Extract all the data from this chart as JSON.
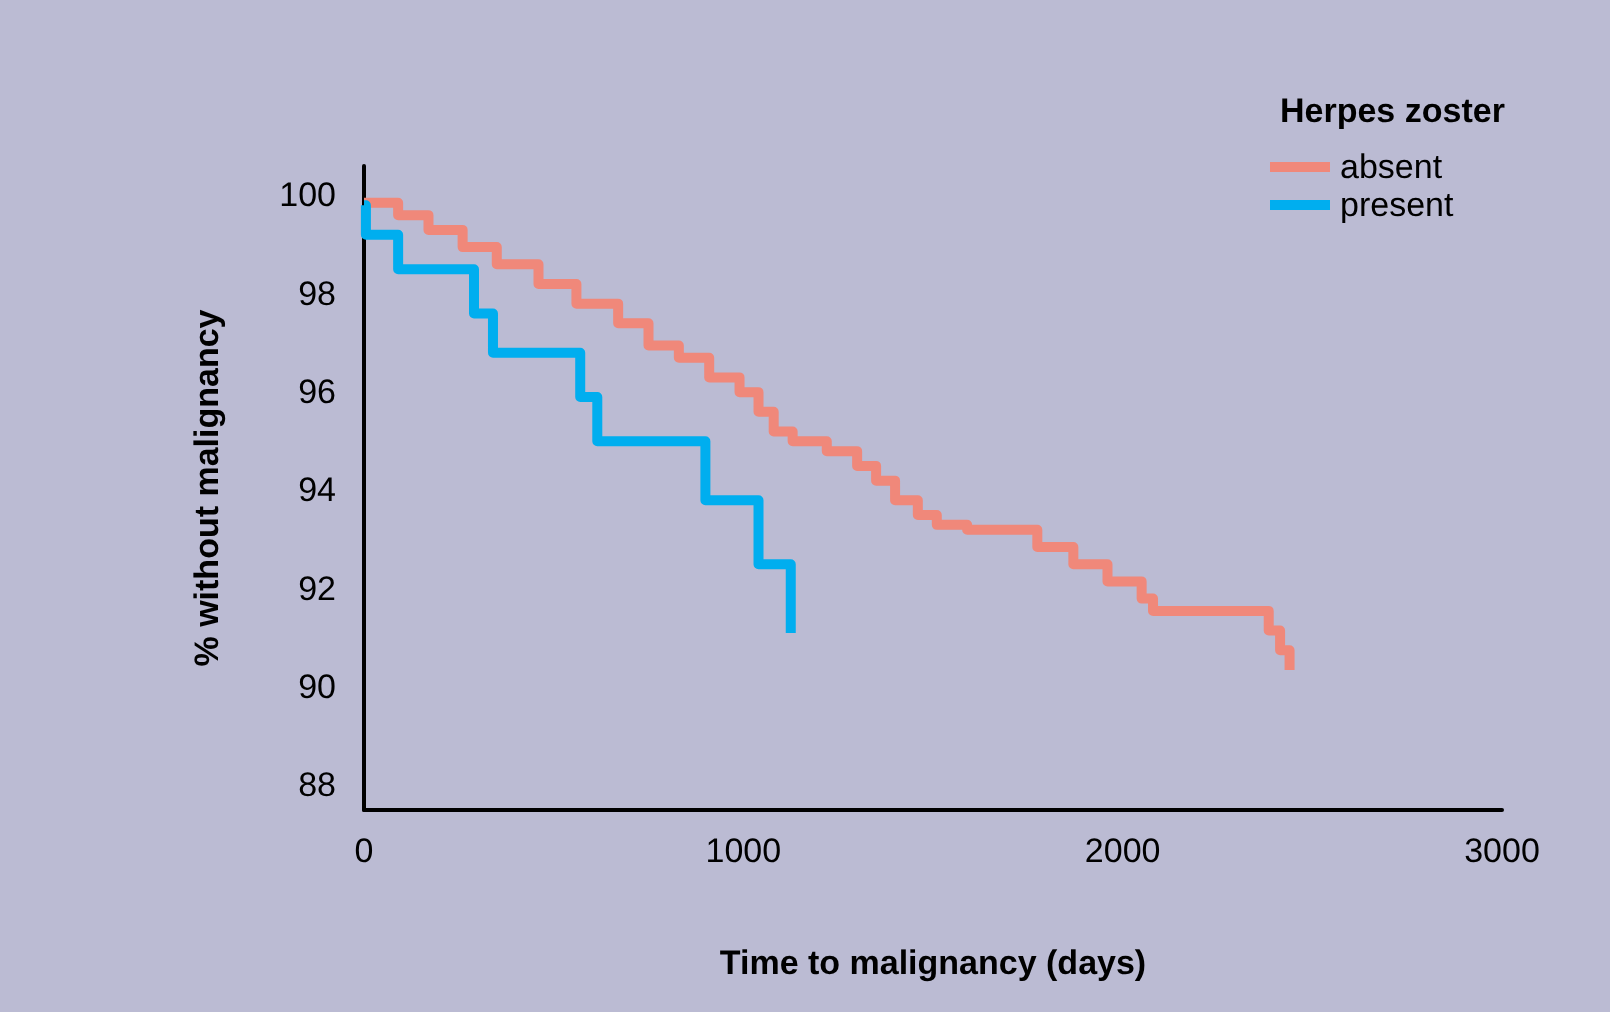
{
  "chart_data": {
    "type": "step",
    "xlabel": "Time to malignancy (days)",
    "ylabel": "% without malignancy",
    "legend_title": "Herpes zoster",
    "xlim": [
      0,
      3000
    ],
    "xticks": [
      0,
      1000,
      2000,
      3000
    ],
    "ylim": [
      87.5,
      100.6
    ],
    "yticks": [
      88,
      90,
      92,
      94,
      96,
      98,
      100
    ],
    "grid": false,
    "legend": "top right",
    "marker": "none",
    "line_style": "solid",
    "series": [
      {
        "name": "absent",
        "color": "#f0887a",
        "x": [
          0,
          90,
          170,
          260,
          350,
          460,
          560,
          670,
          750,
          830,
          910,
          990,
          1040,
          1080,
          1130,
          1220,
          1300,
          1350,
          1400,
          1460,
          1510,
          1590,
          1775,
          1870,
          1960,
          2050,
          2080,
          2385,
          2415,
          2440
        ],
        "values": [
          99.85,
          99.6,
          99.3,
          98.95,
          98.6,
          98.2,
          97.8,
          97.4,
          96.95,
          96.7,
          96.3,
          96.0,
          95.6,
          95.2,
          95.0,
          94.8,
          94.5,
          94.2,
          93.8,
          93.5,
          93.3,
          93.2,
          92.85,
          92.5,
          92.15,
          91.8,
          91.55,
          91.15,
          90.75,
          90.35
        ]
      },
      {
        "name": "present",
        "color": "#00aeef",
        "x": [
          0,
          5,
          90,
          290,
          340,
          570,
          615,
          900,
          1040,
          1125
        ],
        "values": [
          99.8,
          99.2,
          98.5,
          97.6,
          96.8,
          95.9,
          95.0,
          93.8,
          92.5,
          91.1
        ]
      }
    ]
  }
}
